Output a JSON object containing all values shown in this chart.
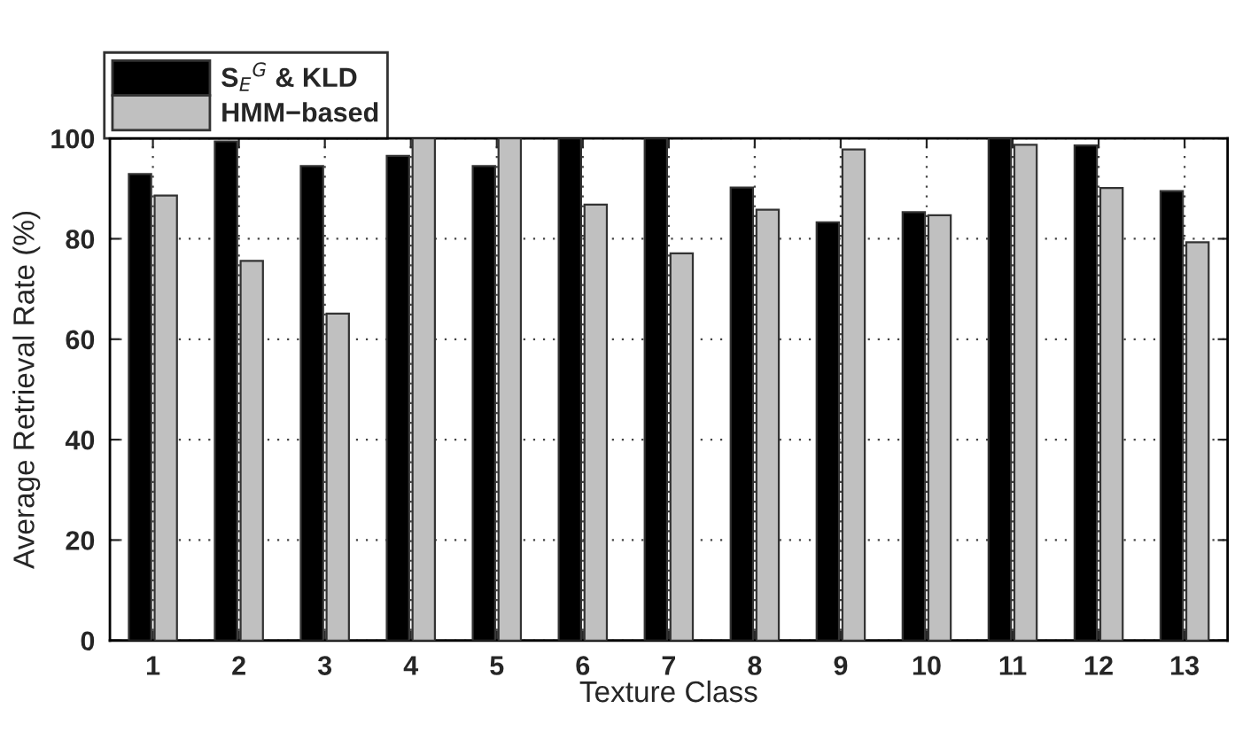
{
  "chart_data": {
    "type": "bar",
    "xlabel": "Texture Class",
    "ylabel": "Average Retrieval Rate (%)",
    "categories": [
      "1",
      "2",
      "3",
      "4",
      "5",
      "6",
      "7",
      "8",
      "9",
      "10",
      "11",
      "12",
      "13"
    ],
    "series": [
      {
        "name": "S$_{E}$$^{G}$ & KLD",
        "color": "#000000",
        "values": [
          92.9,
          99.4,
          94.5,
          96.5,
          94.5,
          100,
          100,
          90.2,
          83.3,
          85.3,
          100,
          98.6,
          89.5
        ]
      },
      {
        "name": "HMM−based",
        "color": "#c0c0c0",
        "values": [
          88.6,
          75.6,
          65.1,
          100,
          100,
          86.8,
          77.1,
          85.8,
          97.8,
          84.7,
          98.7,
          90.1,
          79.3
        ]
      }
    ],
    "ylim": [
      0,
      100
    ],
    "yticks": [
      0,
      20,
      40,
      60,
      80,
      100
    ],
    "grid": true,
    "legend": "top left"
  }
}
